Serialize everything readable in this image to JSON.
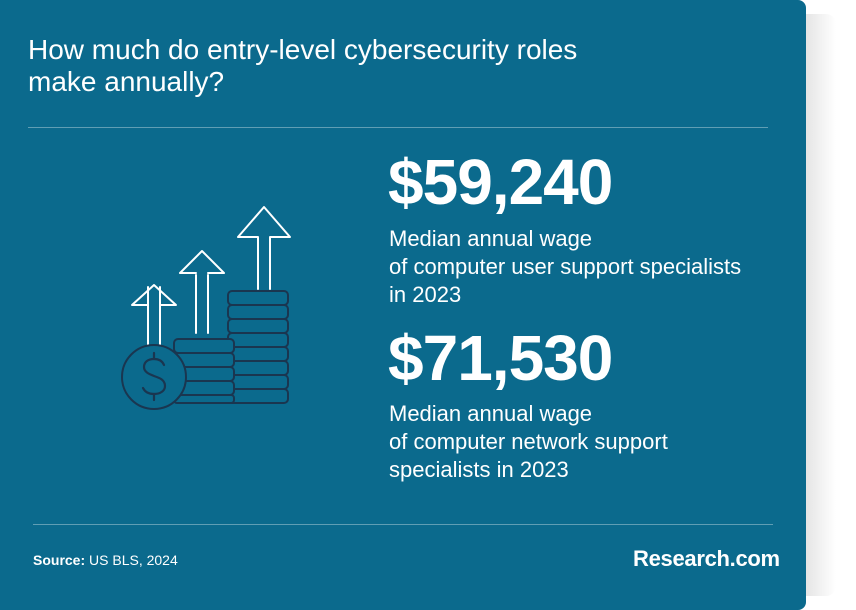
{
  "title": {
    "line1": "How much do entry-level cybersecurity roles",
    "line2": "make annually?"
  },
  "stats": [
    {
      "value": "$59,240",
      "desc_lines": [
        "Median annual wage",
        "of computer user support specialists",
        "in 2023"
      ]
    },
    {
      "value": "$71,530",
      "desc_lines": [
        "Median annual wage",
        "of computer network support",
        "specialists in 2023"
      ]
    }
  ],
  "footer": {
    "source_label": "Source:",
    "source_text": "US BLS, 2024",
    "brand": "Research.com"
  },
  "icon": "growth-coins-arrows-icon",
  "colors": {
    "background": "#0b6a8d",
    "text": "#ffffff",
    "icon_stroke": "#1a3650",
    "arrow_stroke": "#ffffff"
  }
}
